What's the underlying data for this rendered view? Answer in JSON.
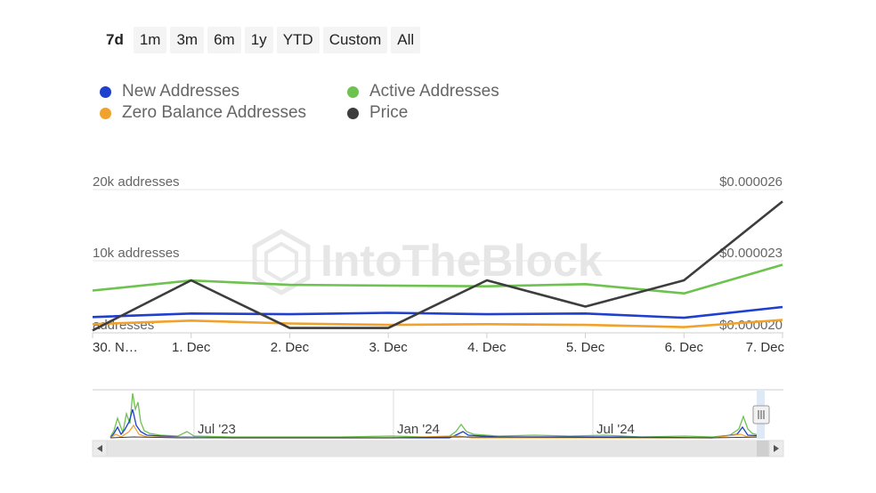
{
  "range_selector": [
    {
      "label": "7d",
      "active": true
    },
    {
      "label": "1m",
      "active": false
    },
    {
      "label": "3m",
      "active": false
    },
    {
      "label": "6m",
      "active": false
    },
    {
      "label": "1y",
      "active": false
    },
    {
      "label": "YTD",
      "active": false
    },
    {
      "label": "Custom",
      "active": false
    },
    {
      "label": "All",
      "active": false
    }
  ],
  "legend": [
    {
      "label": "New Addresses",
      "color": "#1f3fcf"
    },
    {
      "label": "Active Addresses",
      "color": "#6ec24f"
    },
    {
      "label": "Zero Balance Addresses",
      "color": "#f0a22c"
    },
    {
      "label": "Price",
      "color": "#3d3d3d"
    }
  ],
  "watermark": "IntoTheBlock",
  "chart_data": {
    "type": "line",
    "x": [
      "30. N…",
      "1. Dec",
      "2. Dec",
      "3. Dec",
      "4. Dec",
      "5. Dec",
      "6. Dec",
      "7. Dec"
    ],
    "y_left": {
      "ticks": [
        "20k addresses",
        "10k addresses",
        "addresses"
      ],
      "tick_values": [
        20000,
        10000,
        0
      ],
      "ylim": [
        0,
        20000
      ]
    },
    "y_right": {
      "ticks": [
        "$0.000026",
        "$0.000023",
        "$0.000020"
      ],
      "tick_values": [
        2.6e-05,
        2.3e-05,
        2e-05
      ],
      "ylim": [
        2e-05,
        2.6e-05
      ]
    },
    "series": [
      {
        "name": "New Addresses",
        "color": "#1f3fcf",
        "axis": "left",
        "values": [
          2200,
          2700,
          2600,
          2800,
          2600,
          2700,
          2100,
          3600
        ]
      },
      {
        "name": "Active Addresses",
        "color": "#6ec24f",
        "axis": "left",
        "values": [
          5900,
          7300,
          6700,
          6600,
          6500,
          6800,
          5500,
          9500
        ]
      },
      {
        "name": "Zero Balance Addresses",
        "color": "#f0a22c",
        "axis": "left",
        "values": [
          1200,
          1700,
          1300,
          1100,
          1200,
          1100,
          800,
          1800
        ]
      },
      {
        "name": "Price",
        "color": "#3d3d3d",
        "axis": "right",
        "values": [
          2.01e-05,
          2.22e-05,
          2.02e-05,
          2.02e-05,
          2.22e-05,
          2.11e-05,
          2.22e-05,
          2.55e-05
        ]
      }
    ]
  },
  "navigator": {
    "labels": [
      "Jul '23",
      "Jan '24",
      "Jul '24"
    ]
  }
}
